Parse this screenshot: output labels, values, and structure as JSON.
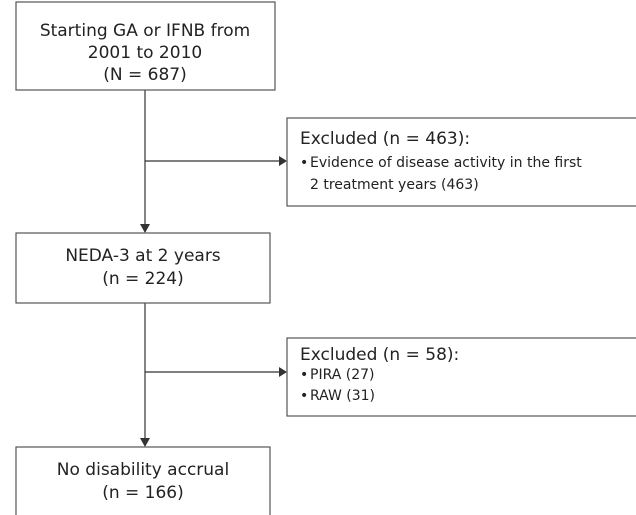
{
  "nodes": [
    {
      "lines": [
        "Starting GA or IFNB from",
        "2001 to 2010",
        "(N = 687)"
      ]
    },
    {
      "title": "Excluded (n = 463):",
      "items": [
        {
          "lines": [
            "Evidence of disease activity in the first",
            "2 treatment years (463)"
          ]
        }
      ]
    },
    {
      "lines": [
        "NEDA-3 at 2 years",
        "(n = 224)"
      ]
    },
    {
      "title": "Excluded (n = 58):",
      "items": [
        {
          "lines": [
            "PIRA (27)"
          ]
        },
        {
          "lines": [
            "RAW (31)"
          ]
        }
      ]
    },
    {
      "lines": [
        "No disability accrual",
        "(n = 166)"
      ]
    }
  ]
}
